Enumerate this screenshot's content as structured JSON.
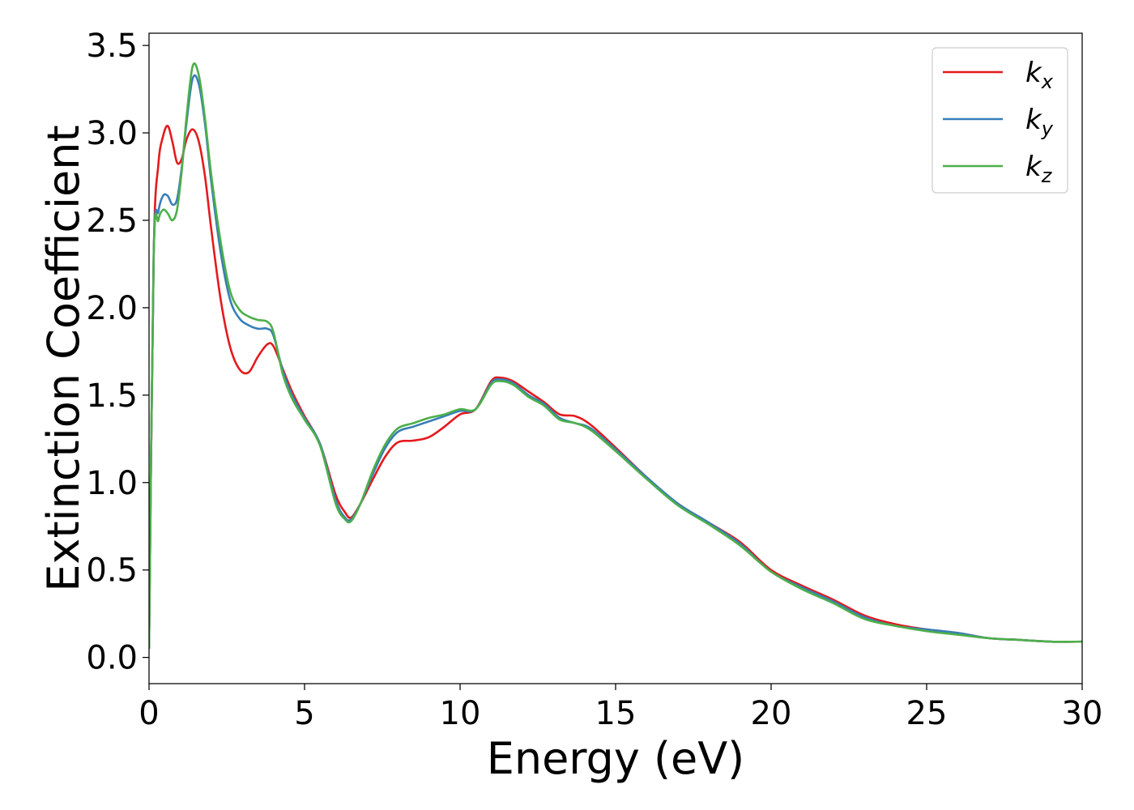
{
  "chart_data": {
    "type": "line",
    "xlabel": "Energy (eV)",
    "ylabel": "Extinction Coefficient",
    "xlim": [
      0,
      30
    ],
    "ylim": [
      -0.15,
      3.57
    ],
    "xticks": [
      0,
      5,
      10,
      15,
      20,
      25,
      30
    ],
    "yticks": [
      0.0,
      0.5,
      1.0,
      1.5,
      2.0,
      2.5,
      3.0,
      3.5
    ],
    "xtick_labels": [
      "0",
      "5",
      "10",
      "15",
      "20",
      "25",
      "30"
    ],
    "ytick_labels": [
      "0.0",
      "0.5",
      "1.0",
      "1.5",
      "2.0",
      "2.5",
      "3.0",
      "3.5"
    ],
    "grid": false,
    "legend_position": "top-right",
    "series": [
      {
        "name": "k_x",
        "label_base": "k",
        "label_sub": "x",
        "color": "#e41a1c",
        "x": [
          0,
          0.15,
          0.3,
          0.45,
          0.6,
          0.75,
          0.9,
          1.05,
          1.2,
          1.4,
          1.6,
          1.8,
          2.0,
          2.3,
          2.6,
          2.9,
          3.2,
          3.5,
          3.8,
          4.0,
          4.3,
          4.6,
          5.0,
          5.5,
          6.0,
          6.3,
          6.5,
          6.8,
          7.2,
          7.6,
          8.0,
          8.5,
          9.0,
          9.5,
          10.0,
          10.5,
          11.0,
          11.3,
          11.7,
          12.2,
          12.7,
          13.2,
          13.7,
          14.2,
          15.0,
          16.0,
          17.0,
          18.0,
          19.0,
          20.0,
          21.0,
          22.0,
          23.0,
          24.0,
          25.0,
          26.0,
          27.0,
          28.0,
          29.0,
          30.0
        ],
        "y": [
          0.05,
          2.3,
          2.82,
          2.98,
          3.04,
          2.95,
          2.83,
          2.85,
          2.96,
          3.02,
          2.95,
          2.75,
          2.45,
          2.05,
          1.78,
          1.65,
          1.63,
          1.72,
          1.79,
          1.78,
          1.65,
          1.52,
          1.38,
          1.22,
          0.93,
          0.83,
          0.8,
          0.88,
          1.02,
          1.15,
          1.23,
          1.24,
          1.26,
          1.32,
          1.39,
          1.42,
          1.58,
          1.6,
          1.58,
          1.52,
          1.46,
          1.39,
          1.38,
          1.33,
          1.2,
          1.03,
          0.88,
          0.77,
          0.66,
          0.5,
          0.41,
          0.33,
          0.24,
          0.19,
          0.16,
          0.14,
          0.11,
          0.1,
          0.09,
          0.09
        ]
      },
      {
        "name": "k_y",
        "label_base": "k",
        "label_sub": "y",
        "color": "#377eb8",
        "x": [
          0,
          0.15,
          0.3,
          0.45,
          0.6,
          0.75,
          0.9,
          1.05,
          1.2,
          1.4,
          1.6,
          1.8,
          2.0,
          2.3,
          2.6,
          2.9,
          3.2,
          3.5,
          3.8,
          4.0,
          4.3,
          4.6,
          5.0,
          5.5,
          6.0,
          6.3,
          6.5,
          6.8,
          7.2,
          7.6,
          8.0,
          8.5,
          9.0,
          9.5,
          10.0,
          10.5,
          11.0,
          11.3,
          11.7,
          12.2,
          12.7,
          13.2,
          13.7,
          14.2,
          15.0,
          16.0,
          17.0,
          18.0,
          19.0,
          20.0,
          21.0,
          22.0,
          23.0,
          24.0,
          25.0,
          26.0,
          27.0,
          28.0,
          29.0,
          30.0
        ],
        "y": [
          0.05,
          2.3,
          2.55,
          2.64,
          2.64,
          2.59,
          2.62,
          2.8,
          3.05,
          3.31,
          3.28,
          3.05,
          2.72,
          2.32,
          2.05,
          1.94,
          1.9,
          1.88,
          1.88,
          1.84,
          1.64,
          1.5,
          1.37,
          1.22,
          0.9,
          0.8,
          0.79,
          0.88,
          1.05,
          1.2,
          1.29,
          1.32,
          1.35,
          1.38,
          1.41,
          1.42,
          1.57,
          1.59,
          1.57,
          1.5,
          1.45,
          1.37,
          1.34,
          1.31,
          1.19,
          1.03,
          0.88,
          0.77,
          0.65,
          0.49,
          0.4,
          0.32,
          0.23,
          0.18,
          0.16,
          0.14,
          0.11,
          0.1,
          0.09,
          0.09
        ]
      },
      {
        "name": "k_z",
        "label_base": "k",
        "label_sub": "z",
        "color": "#4daf4a",
        "x": [
          0,
          0.15,
          0.3,
          0.45,
          0.6,
          0.75,
          0.9,
          1.05,
          1.2,
          1.4,
          1.6,
          1.8,
          2.0,
          2.3,
          2.6,
          2.9,
          3.2,
          3.5,
          3.8,
          4.0,
          4.3,
          4.6,
          5.0,
          5.5,
          6.0,
          6.3,
          6.5,
          6.8,
          7.2,
          7.6,
          8.0,
          8.5,
          9.0,
          9.5,
          10.0,
          10.5,
          11.0,
          11.3,
          11.7,
          12.2,
          12.7,
          13.2,
          13.7,
          14.2,
          15.0,
          16.0,
          17.0,
          18.0,
          19.0,
          20.0,
          21.0,
          22.0,
          23.0,
          24.0,
          25.0,
          26.0,
          27.0,
          28.0,
          29.0,
          30.0
        ],
        "y": [
          0.05,
          2.3,
          2.5,
          2.56,
          2.54,
          2.5,
          2.56,
          2.78,
          3.08,
          3.38,
          3.33,
          3.08,
          2.76,
          2.38,
          2.1,
          1.99,
          1.95,
          1.93,
          1.92,
          1.86,
          1.62,
          1.48,
          1.36,
          1.21,
          0.88,
          0.79,
          0.78,
          0.88,
          1.07,
          1.22,
          1.31,
          1.34,
          1.37,
          1.39,
          1.42,
          1.42,
          1.56,
          1.58,
          1.56,
          1.49,
          1.44,
          1.36,
          1.34,
          1.3,
          1.18,
          1.02,
          0.87,
          0.76,
          0.64,
          0.49,
          0.39,
          0.31,
          0.22,
          0.18,
          0.15,
          0.13,
          0.11,
          0.1,
          0.09,
          0.09
        ]
      }
    ]
  }
}
